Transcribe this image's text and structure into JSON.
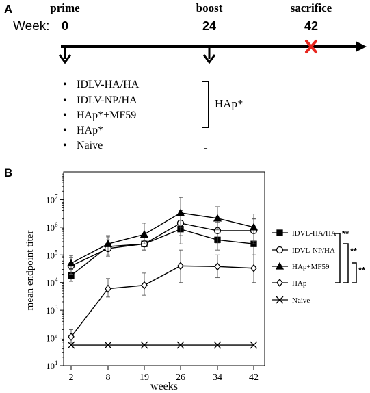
{
  "panel_a": {
    "label": "A",
    "week_label": "Week:",
    "events": [
      {
        "name": "prime",
        "week": "0"
      },
      {
        "name": "boost",
        "week": "24"
      },
      {
        "name": "sacrifice",
        "week": "42"
      }
    ],
    "prime_groups": [
      "IDLV-HA/HA",
      "IDLV-NP/HA",
      "HAp*+MF59",
      "HAp*",
      "Naive"
    ],
    "boost_label": "HAp*",
    "naive_boost": "-",
    "bullet": "•",
    "sacrifice_mark_color": "#e8271f"
  },
  "panel_b": {
    "label": "B",
    "significance": [
      "**",
      "**",
      "**"
    ]
  },
  "chart_data": {
    "type": "line",
    "xlabel": "weeks",
    "ylabel": "mean endpoint titer",
    "x": [
      2,
      8,
      19,
      26,
      34,
      42
    ],
    "x_ticks": [
      "2",
      "8",
      "19",
      "26",
      "34",
      "42"
    ],
    "y_scale": "log",
    "ylim": [
      10,
      100000000
    ],
    "y_ticks": [
      {
        "base": "10",
        "exp": "1"
      },
      {
        "base": "10",
        "exp": "2"
      },
      {
        "base": "10",
        "exp": "3"
      },
      {
        "base": "10",
        "exp": "4"
      },
      {
        "base": "10",
        "exp": "5"
      },
      {
        "base": "10",
        "exp": "6"
      },
      {
        "base": "10",
        "exp": "7"
      }
    ],
    "legend_position": "right",
    "series": [
      {
        "name": "IDVL-HA/HA",
        "marker": "filled-square",
        "values": [
          18000,
          200000,
          250000,
          850000,
          350000,
          250000
        ],
        "err_low": [
          11000,
          100000,
          150000,
          250000,
          150000,
          100000
        ],
        "err_high": [
          30000,
          450000,
          450000,
          3500000,
          1500000,
          2000000
        ]
      },
      {
        "name": "IDVL-NP/HA",
        "marker": "open-circle",
        "values": [
          40000,
          170000,
          250000,
          1400000,
          750000,
          750000
        ],
        "err_low": [
          20000,
          90000,
          150000,
          500000,
          250000,
          250000
        ],
        "err_high": [
          80000,
          350000,
          500000,
          4000000,
          2000000,
          2000000
        ]
      },
      {
        "name": "HAp+MF59",
        "marker": "filled-triangle",
        "values": [
          50000,
          250000,
          550000,
          3300000,
          2100000,
          1000000
        ],
        "err_low": [
          30000,
          140000,
          250000,
          1000000,
          800000,
          300000
        ],
        "err_high": [
          95000,
          500000,
          1400000,
          12000000,
          5500000,
          3000000
        ]
      },
      {
        "name": "HAp",
        "marker": "open-diamond",
        "values": [
          110,
          6000,
          8000,
          40000,
          38000,
          33000
        ],
        "err_low": [
          65,
          3000,
          3500,
          10000,
          15000,
          10000
        ],
        "err_high": [
          200,
          14000,
          22000,
          150000,
          100000,
          100000
        ]
      },
      {
        "name": "Naive",
        "marker": "x",
        "values": [
          55,
          55,
          55,
          55,
          55,
          55
        ],
        "err_low": null,
        "err_high": null
      }
    ]
  }
}
